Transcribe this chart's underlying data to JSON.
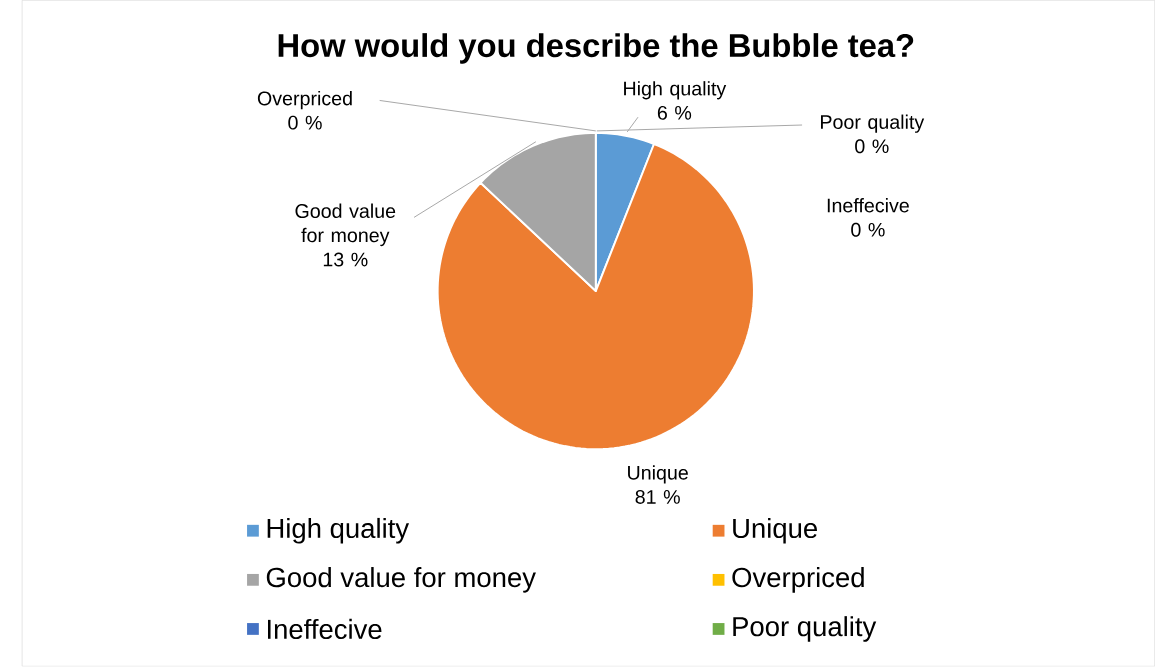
{
  "chart_data": {
    "type": "pie",
    "title": "How would you describe the Bubble tea?",
    "categories": [
      "High quality",
      "Unique",
      "Good value for money",
      "Overpriced",
      "Ineffecive",
      "Poor quality"
    ],
    "values": [
      6,
      81,
      13,
      0,
      0,
      0
    ],
    "value_labels": [
      "6 %",
      "81 %",
      "13 %",
      "0 %",
      "0 %",
      "0 %"
    ],
    "colors": [
      "#5b9bd5",
      "#ed7d31",
      "#a5a5a5",
      "#ffc000",
      "#4472c4",
      "#70ad47"
    ],
    "legend": "bottom"
  }
}
